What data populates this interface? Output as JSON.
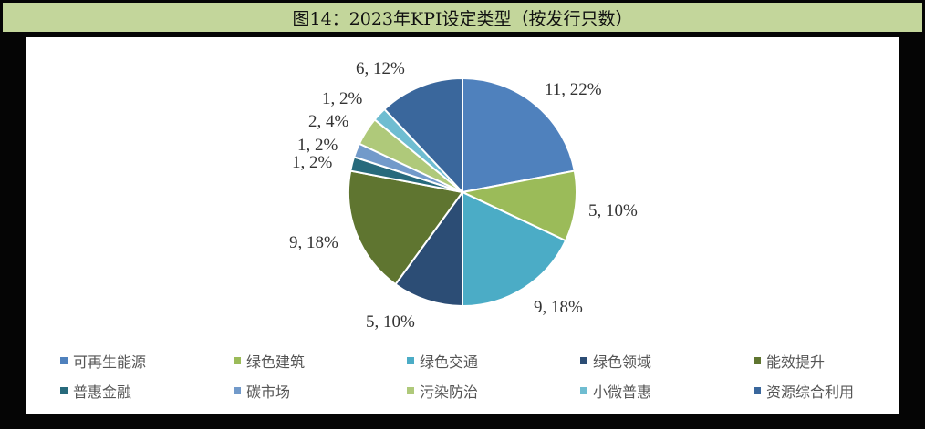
{
  "title": "图14：2023年KPI设定类型（按发行只数）",
  "chart_data": {
    "type": "pie",
    "title": "图14：2023年KPI设定类型（按发行只数）",
    "categories": [
      "可再生能源",
      "绿色建筑",
      "绿色交通",
      "绿色领域",
      "能效提升",
      "普惠金融",
      "碳市场",
      "污染防治",
      "小微普惠",
      "资源综合利用"
    ],
    "values": [
      11,
      5,
      9,
      5,
      9,
      1,
      1,
      2,
      1,
      6
    ],
    "percentages": [
      22,
      10,
      18,
      10,
      18,
      2,
      2,
      4,
      2,
      12
    ],
    "labels": [
      "11, 22%",
      "5, 10%",
      "9, 18%",
      "5, 10%",
      "9, 18%",
      "1, 2%",
      "1, 2%",
      "2, 4%",
      "1, 2%",
      "6, 12%"
    ],
    "colors": [
      "#4F81BD",
      "#9BBB59",
      "#4BACC6",
      "#2C4D75",
      "#5F7530",
      "#276A7C",
      "#729ACA",
      "#AFC97A",
      "#6FBDD1",
      "#3A679C"
    ],
    "start_angle": "12 o'clock, clockwise",
    "legend_position": "bottom"
  },
  "legend": [
    {
      "label": "可再生能源",
      "color": "#4F81BD"
    },
    {
      "label": "绿色建筑",
      "color": "#9BBB59"
    },
    {
      "label": "绿色交通",
      "color": "#4BACC6"
    },
    {
      "label": "绿色领域",
      "color": "#2C4D75"
    },
    {
      "label": "能效提升",
      "color": "#5F7530"
    },
    {
      "label": "普惠金融",
      "color": "#276A7C"
    },
    {
      "label": "碳市场",
      "color": "#729ACA"
    },
    {
      "label": "污染防治",
      "color": "#AFC97A"
    },
    {
      "label": "小微普惠",
      "color": "#6FBDD1"
    },
    {
      "label": "资源综合利用",
      "color": "#3A679C"
    }
  ]
}
